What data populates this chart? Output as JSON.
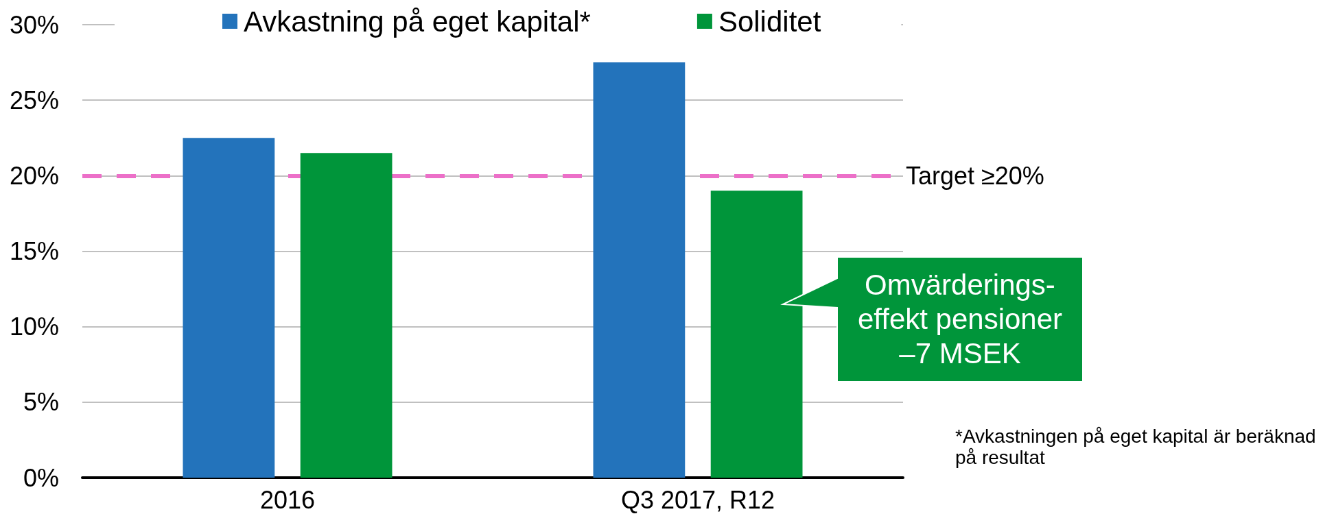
{
  "chart_data": {
    "type": "bar",
    "categories": [
      "2016",
      "Q3 2017, R12"
    ],
    "series": [
      {
        "name": "Avkastning på eget kapital*",
        "color": "#2373bb",
        "values": [
          22.5,
          27.5
        ]
      },
      {
        "name": "Soliditet",
        "color": "#00953a",
        "values": [
          21.5,
          19
        ]
      }
    ],
    "ylim": [
      0,
      30
    ],
    "yticks": [
      {
        "value": 0,
        "label": "0%"
      },
      {
        "value": 5,
        "label": "5%"
      },
      {
        "value": 10,
        "label": "10%"
      },
      {
        "value": 15,
        "label": "15%"
      },
      {
        "value": 20,
        "label": "20%"
      },
      {
        "value": 25,
        "label": "25%"
      },
      {
        "value": 30,
        "label": "30%"
      }
    ],
    "grid": "y",
    "legend": "top",
    "ref_lines": [
      {
        "axis": "y",
        "value": 20,
        "label": "Target ≥20%",
        "color": "#ec6fc8",
        "line_style": "dashed"
      }
    ],
    "annotations": [
      "Omvärderings-\neffekt pensioner\n–7 MSEK",
      "*Avkastningen på eget kapital är beräknad\npå resultat"
    ]
  }
}
